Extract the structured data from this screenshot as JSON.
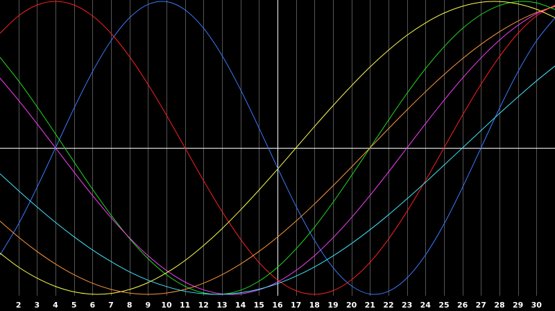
{
  "chart_data": {
    "type": "line",
    "x": [
      1,
      2,
      3,
      4,
      5,
      6,
      7,
      8,
      9,
      10,
      11,
      12,
      13,
      14,
      15,
      16,
      17,
      18,
      19,
      20,
      21,
      22,
      23,
      24,
      25,
      26,
      27,
      28,
      29,
      30,
      31
    ],
    "xlim": [
      1,
      31
    ],
    "ylim": [
      -1,
      1
    ],
    "x_ticks": [
      2,
      3,
      4,
      5,
      6,
      7,
      8,
      9,
      10,
      11,
      12,
      13,
      14,
      15,
      16,
      17,
      18,
      19,
      20,
      21,
      22,
      23,
      24,
      25,
      26,
      27,
      28,
      29,
      30
    ],
    "grid": true,
    "reference_lines": {
      "x": 16,
      "y": 0
    },
    "colors": {
      "background": "#000000",
      "grid": "#555555",
      "reference_lines": "#ffffff",
      "tick_labels": "#ffffff"
    },
    "series": [
      {
        "color": "#3a7bff",
        "values": [
          -0.731,
          -0.52,
          -0.27,
          0,
          0.27,
          0.52,
          0.731,
          0.888,
          0.979,
          0.998,
          0.942,
          0.817,
          0.631,
          0.398,
          0.136,
          -0.136,
          -0.398,
          -0.631,
          -0.817,
          -0.942,
          -0.998,
          -0.979,
          -0.888,
          -0.731,
          -0.52,
          -0.27,
          0,
          0.27,
          0.52,
          0.731,
          0.888
        ]
      },
      {
        "color": "#ff2020",
        "values": [
          0.782,
          0.901,
          0.975,
          1.0,
          0.975,
          0.901,
          0.782,
          0.623,
          0.434,
          0.223,
          0,
          -0.223,
          -0.434,
          -0.623,
          -0.782,
          -0.901,
          -0.975,
          -1.0,
          -0.975,
          -0.901,
          -0.782,
          -0.623,
          -0.434,
          -0.223,
          0,
          0.223,
          0.434,
          0.623,
          0.782,
          0.901,
          0.975
        ]
      },
      {
        "color": "#20e020",
        "values": [
          0.618,
          0.458,
          0.282,
          0.095,
          -0.095,
          -0.282,
          -0.458,
          -0.618,
          -0.756,
          -0.866,
          -0.945,
          -0.99,
          -0.999,
          -0.972,
          -0.91,
          -0.815,
          -0.69,
          -0.541,
          -0.372,
          -0.189,
          0,
          0.189,
          0.372,
          0.541,
          0.69,
          0.815,
          0.91,
          0.972,
          0.999,
          0.99,
          0.945
        ]
      },
      {
        "color": "#ff40ff",
        "values": [
          0.476,
          0.325,
          0.165,
          0,
          -0.165,
          -0.325,
          -0.476,
          -0.614,
          -0.736,
          -0.837,
          -0.916,
          -0.969,
          -0.997,
          -0.997,
          -0.969,
          -0.916,
          -0.837,
          -0.736,
          -0.614,
          -0.476,
          -0.325,
          -0.165,
          0,
          0.165,
          0.325,
          0.476,
          0.614,
          0.736,
          0.837,
          0.916,
          0.969
        ]
      },
      {
        "color": "#ffff50",
        "values": [
          -0.719,
          -0.814,
          -0.889,
          -0.946,
          -0.983,
          -0.999,
          -0.994,
          -0.967,
          -0.92,
          -0.853,
          -0.769,
          -0.667,
          -0.552,
          -0.424,
          -0.288,
          -0.146,
          0,
          0.146,
          0.288,
          0.424,
          0.552,
          0.667,
          0.769,
          0.853,
          0.92,
          0.967,
          0.994,
          0.999,
          0.983,
          0.946,
          0.889
        ]
      },
      {
        "color": "#ff9a3c",
        "values": [
          -0.5,
          -0.609,
          -0.707,
          -0.793,
          -0.866,
          -0.924,
          -0.966,
          -0.991,
          -1.0,
          -0.991,
          -0.966,
          -0.924,
          -0.866,
          -0.793,
          -0.707,
          -0.609,
          -0.5,
          -0.383,
          -0.259,
          -0.131,
          0,
          0.131,
          0.259,
          0.383,
          0.5,
          0.609,
          0.707,
          0.793,
          0.866,
          0.924,
          0.966
        ]
      },
      {
        "color": "#40e8ff",
        "values": [
          -0.177,
          -0.292,
          -0.403,
          -0.509,
          -0.607,
          -0.697,
          -0.776,
          -0.846,
          -0.903,
          -0.947,
          -0.979,
          -0.996,
          -1.0,
          -0.989,
          -0.965,
          -0.927,
          -0.876,
          -0.813,
          -0.738,
          -0.653,
          -0.559,
          -0.457,
          -0.348,
          -0.235,
          -0.118,
          0,
          0.118,
          0.235,
          0.348,
          0.457,
          0.559
        ]
      }
    ]
  }
}
